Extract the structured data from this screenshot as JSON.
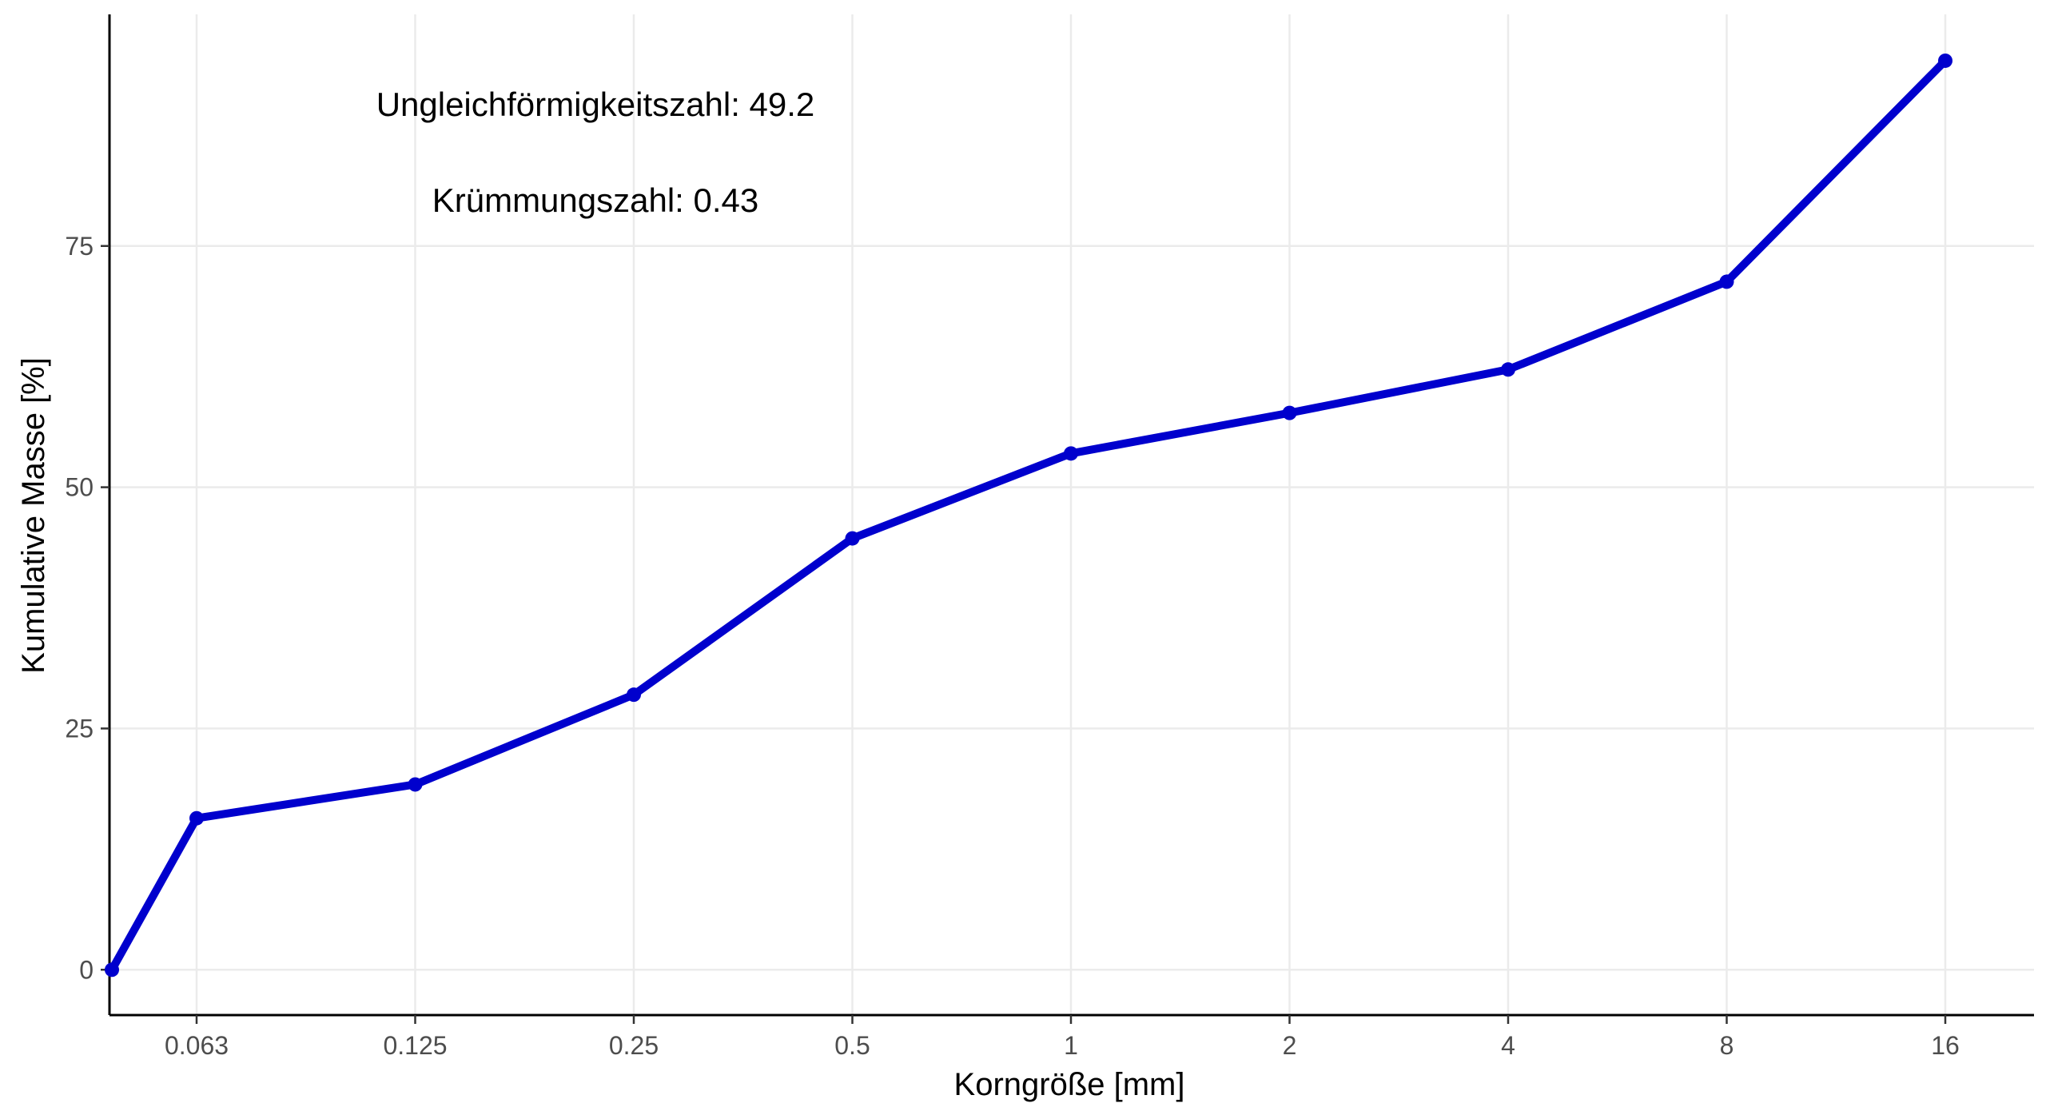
{
  "chart_data": {
    "type": "line",
    "x_type": "categorical",
    "categories": [
      "0.063",
      "0.125",
      "0.25",
      "0.5",
      "1",
      "2",
      "4",
      "8",
      "16"
    ],
    "series": [
      {
        "color": "#0000cd",
        "points": [
          {
            "x": "",
            "y": 0
          },
          {
            "x": "0.063",
            "y": 15.7
          },
          {
            "x": "0.125",
            "y": 19.2
          },
          {
            "x": "0.25",
            "y": 28.5
          },
          {
            "x": "0.5",
            "y": 44.7
          },
          {
            "x": "1",
            "y": 53.5
          },
          {
            "x": "2",
            "y": 57.7
          },
          {
            "x": "4",
            "y": 62.2
          },
          {
            "x": "8",
            "y": 71.3
          },
          {
            "x": "16",
            "y": 94.2
          }
        ]
      }
    ],
    "xlabel": "Korngröße [mm]",
    "ylabel": "Kumulative Masse [%]",
    "yticks": [
      0,
      25,
      50,
      75
    ],
    "ylim": [
      -4.7,
      99
    ],
    "grid": true,
    "annotations": [
      {
        "text": "Ungleichförmigkeitszahl: 49.2"
      },
      {
        "text": "Krümmungszahl: 0.43"
      }
    ]
  }
}
